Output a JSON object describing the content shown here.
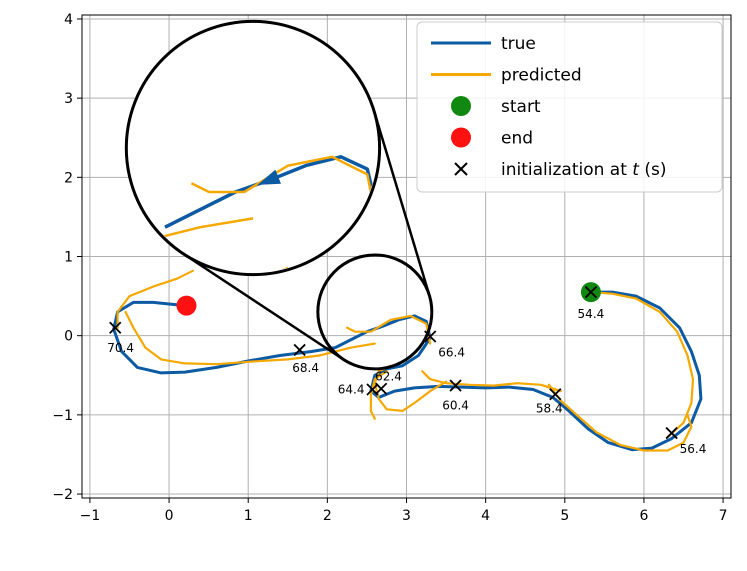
{
  "chart_data": {
    "type": "line",
    "title": "",
    "xlabel": "",
    "ylabel": "",
    "xlim": [
      -1.1,
      7.1
    ],
    "ylim": [
      -2.05,
      4.05
    ],
    "xticks": [
      -1,
      0,
      1,
      2,
      3,
      4,
      5,
      6,
      7
    ],
    "yticks": [
      -2,
      -1,
      0,
      1,
      2,
      3,
      4
    ],
    "grid": true,
    "legend_position": "top-right",
    "legend": [
      {
        "key": "true",
        "label": "true",
        "kind": "line",
        "color": "#0b5aa3"
      },
      {
        "key": "pred",
        "label": "predicted",
        "kind": "line",
        "color": "#f5a800"
      },
      {
        "key": "start",
        "label": "start",
        "kind": "dot",
        "color": "#118811"
      },
      {
        "key": "end",
        "label": "end",
        "kind": "dot",
        "color": "#ff1111"
      },
      {
        "key": "init",
        "label_prefix": "initialization at ",
        "label_var": "t",
        "label_suffix": " (s)",
        "kind": "x",
        "color": "#000000"
      }
    ],
    "series": [
      {
        "name": "true",
        "color": "#0b5aa3",
        "points": [
          [
            5.33,
            0.55
          ],
          [
            5.6,
            0.55
          ],
          [
            5.9,
            0.5
          ],
          [
            6.2,
            0.35
          ],
          [
            6.45,
            0.1
          ],
          [
            6.6,
            -0.2
          ],
          [
            6.7,
            -0.5
          ],
          [
            6.72,
            -0.8
          ],
          [
            6.6,
            -1.1
          ],
          [
            6.35,
            -1.3
          ],
          [
            6.1,
            -1.42
          ],
          [
            5.85,
            -1.44
          ],
          [
            5.55,
            -1.35
          ],
          [
            5.3,
            -1.18
          ],
          [
            5.05,
            -0.95
          ],
          [
            4.85,
            -0.78
          ],
          [
            4.6,
            -0.68
          ],
          [
            4.3,
            -0.65
          ],
          [
            4.0,
            -0.66
          ],
          [
            3.7,
            -0.65
          ],
          [
            3.4,
            -0.64
          ],
          [
            3.1,
            -0.66
          ],
          [
            2.85,
            -0.7
          ],
          [
            2.65,
            -0.78
          ],
          [
            2.55,
            -0.7
          ],
          [
            2.6,
            -0.5
          ],
          [
            2.75,
            -0.42
          ],
          [
            2.95,
            -0.38
          ],
          [
            3.15,
            -0.25
          ],
          [
            3.3,
            -0.03
          ],
          [
            3.25,
            0.18
          ],
          [
            3.1,
            0.25
          ],
          [
            2.9,
            0.2
          ],
          [
            2.7,
            0.12
          ],
          [
            2.5,
            0.05
          ],
          [
            2.3,
            -0.05
          ],
          [
            2.1,
            -0.15
          ],
          [
            1.8,
            -0.2
          ],
          [
            1.4,
            -0.25
          ],
          [
            1.0,
            -0.32
          ],
          [
            0.6,
            -0.4
          ],
          [
            0.2,
            -0.46
          ],
          [
            -0.1,
            -0.47
          ],
          [
            -0.4,
            -0.4
          ],
          [
            -0.6,
            -0.2
          ],
          [
            -0.7,
            0.08
          ],
          [
            -0.65,
            0.3
          ],
          [
            -0.45,
            0.42
          ],
          [
            -0.2,
            0.42
          ],
          [
            0.0,
            0.4
          ],
          [
            0.2,
            0.38
          ]
        ]
      },
      {
        "name": "predicted",
        "color": "#f5a800",
        "segments": [
          [
            [
              5.33,
              0.55
            ],
            [
              5.6,
              0.53
            ],
            [
              5.9,
              0.47
            ],
            [
              6.2,
              0.3
            ],
            [
              6.42,
              0.05
            ],
            [
              6.55,
              -0.25
            ],
            [
              6.62,
              -0.55
            ],
            [
              6.6,
              -0.85
            ],
            [
              6.5,
              -1.1
            ],
            [
              6.3,
              -1.28
            ]
          ],
          [
            [
              6.55,
              -1.0
            ],
            [
              6.6,
              -1.15
            ],
            [
              6.5,
              -1.35
            ],
            [
              6.3,
              -1.45
            ],
            [
              6.0,
              -1.45
            ],
            [
              5.7,
              -1.38
            ],
            [
              5.4,
              -1.22
            ],
            [
              5.15,
              -1.0
            ],
            [
              4.95,
              -0.82
            ],
            [
              4.8,
              -0.62
            ]
          ],
          [
            [
              4.95,
              -0.7
            ],
            [
              4.7,
              -0.62
            ],
            [
              4.4,
              -0.6
            ],
            [
              4.1,
              -0.63
            ],
            [
              3.8,
              -0.62
            ],
            [
              3.5,
              -0.6
            ],
            [
              3.3,
              -0.55
            ],
            [
              3.2,
              -0.45
            ]
          ],
          [
            [
              3.5,
              -0.58
            ],
            [
              3.3,
              -0.7
            ],
            [
              3.1,
              -0.85
            ],
            [
              2.95,
              -0.95
            ],
            [
              2.75,
              -0.93
            ],
            [
              2.65,
              -0.8
            ],
            [
              2.6,
              -0.6
            ],
            [
              2.65,
              -0.45
            ],
            [
              2.8,
              -0.38
            ]
          ],
          [
            [
              2.75,
              -0.45
            ],
            [
              2.6,
              -0.55
            ],
            [
              2.55,
              -0.75
            ],
            [
              2.55,
              -0.95
            ],
            [
              2.6,
              -1.05
            ]
          ],
          [
            [
              3.3,
              -0.1
            ],
            [
              3.25,
              0.15
            ],
            [
              3.05,
              0.25
            ],
            [
              2.8,
              0.2
            ],
            [
              2.55,
              0.05
            ],
            [
              2.35,
              0.05
            ],
            [
              2.25,
              0.1
            ]
          ],
          [
            [
              2.6,
              -0.1
            ],
            [
              2.3,
              -0.15
            ],
            [
              1.9,
              -0.25
            ],
            [
              1.5,
              -0.3
            ],
            [
              1.0,
              -0.33
            ],
            [
              0.6,
              -0.36
            ],
            [
              0.2,
              -0.35
            ],
            [
              -0.1,
              -0.3
            ],
            [
              -0.3,
              -0.15
            ],
            [
              -0.45,
              0.1
            ],
            [
              -0.55,
              0.3
            ]
          ],
          [
            [
              -0.65,
              0.1
            ],
            [
              -0.65,
              0.3
            ],
            [
              -0.5,
              0.5
            ],
            [
              -0.2,
              0.62
            ],
            [
              0.1,
              0.72
            ],
            [
              0.3,
              0.82
            ]
          ]
        ]
      }
    ],
    "start": {
      "x": 5.33,
      "y": 0.55
    },
    "end": {
      "x": 0.22,
      "y": 0.38
    },
    "initialization_points": [
      {
        "x": 5.33,
        "y": 0.55,
        "label": "54.4"
      },
      {
        "x": 6.35,
        "y": -1.23,
        "label": "56.4"
      },
      {
        "x": 4.88,
        "y": -0.74,
        "label": "58.4"
      },
      {
        "x": 3.62,
        "y": -0.63,
        "label": "60.4"
      },
      {
        "x": 2.68,
        "y": -0.67,
        "label": "62.4"
      },
      {
        "x": 2.57,
        "y": -0.68,
        "label": "64.4"
      },
      {
        "x": 3.3,
        "y": -0.01,
        "label": "66.4"
      },
      {
        "x": 1.65,
        "y": -0.18,
        "label": "68.4"
      },
      {
        "x": -0.68,
        "y": 0.1,
        "label": "70.4"
      }
    ],
    "inset": {
      "source_center": {
        "x": 2.6,
        "y": 0.3
      },
      "source_radius": 0.72,
      "zoom_center": {
        "x": 1.06,
        "y": 2.37
      },
      "zoom_radius": 1.6
    }
  }
}
